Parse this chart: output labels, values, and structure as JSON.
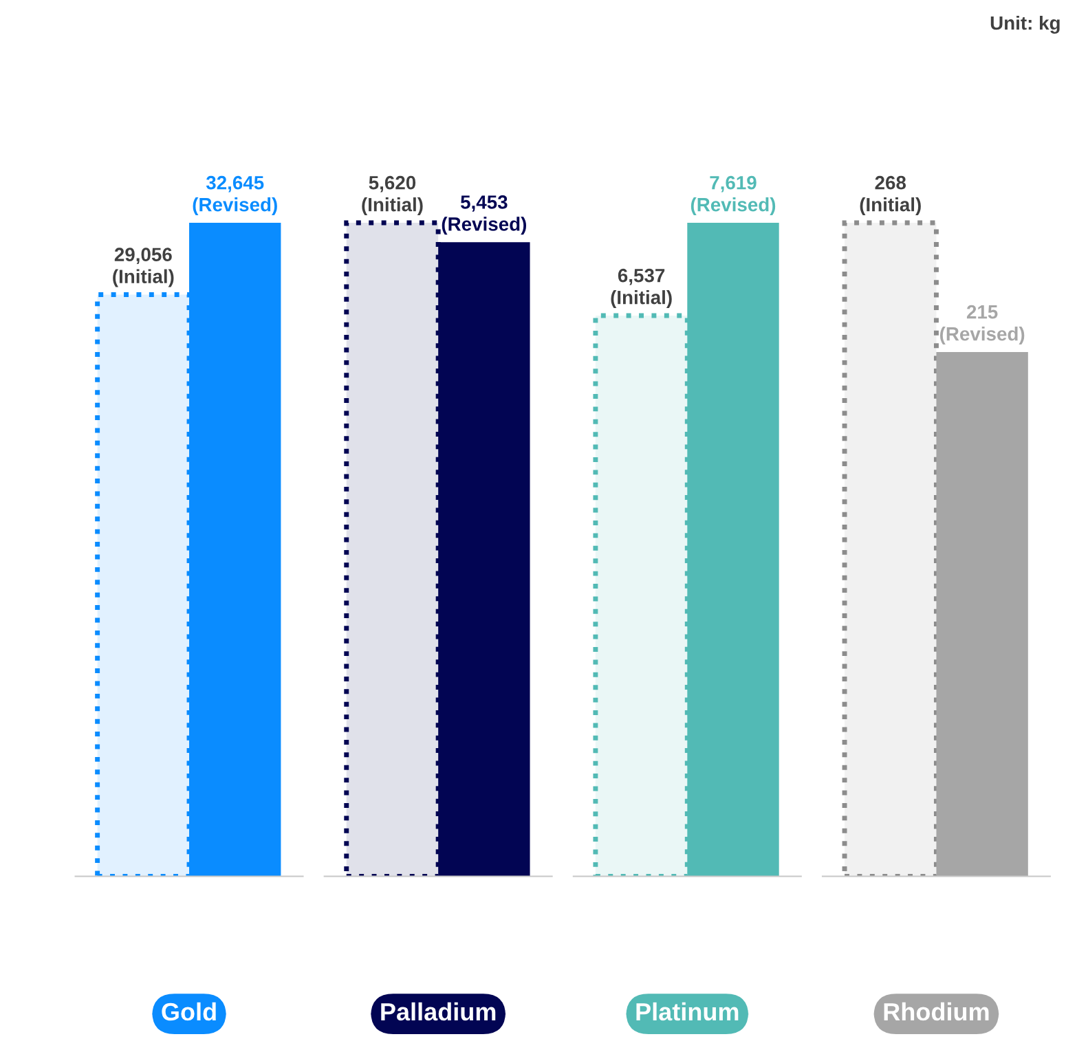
{
  "chart_data": [
    {
      "type": "bar",
      "xlabel": "Gold",
      "categories": [
        null
      ],
      "tick_labels": false,
      "grid": false,
      "legend": false,
      "color": "#0a8cff",
      "series": [
        {
          "color": "#0a8cff",
          "values": [
            29056
          ],
          "line_style": "dotted",
          "value_labels": [
            "29,056\n(Initial)"
          ]
        },
        {
          "color": "#0a8cff",
          "values": [
            32645
          ],
          "value_labels": [
            "32,645\n(Revised)"
          ]
        }
      ]
    },
    {
      "type": "bar",
      "xlabel": "Palladium",
      "categories": [
        null
      ],
      "tick_labels": false,
      "grid": false,
      "legend": false,
      "color": "#020553",
      "series": [
        {
          "color": "#020553",
          "values": [
            5620
          ],
          "line_style": "dotted",
          "value_labels": [
            "5,620\n(Initial)"
          ]
        },
        {
          "color": "#020553",
          "values": [
            5453
          ],
          "value_labels": [
            "5,453\n(Revised)"
          ]
        }
      ]
    },
    {
      "type": "bar",
      "xlabel": "Platinum",
      "categories": [
        null
      ],
      "tick_labels": false,
      "grid": false,
      "legend": false,
      "color": "#52bab5",
      "series": [
        {
          "color": "#52bab5",
          "values": [
            6537
          ],
          "line_style": "dotted",
          "value_labels": [
            "6,537\n(Initial)"
          ]
        },
        {
          "color": "#52bab5",
          "values": [
            7619
          ],
          "value_labels": [
            "7,619\n(Revised)"
          ]
        }
      ]
    },
    {
      "type": "bar",
      "xlabel": "Rhodium",
      "categories": [
        null
      ],
      "tick_labels": false,
      "grid": false,
      "legend": false,
      "color": "#a6a6a6",
      "annotations": [
        "Unit: kg"
      ],
      "series": [
        {
          "color": "#8c8c8c",
          "values": [
            268
          ],
          "line_style": "dotted",
          "value_labels": [
            "268\n(Initial)"
          ]
        },
        {
          "color": "#a6a6a6",
          "values": [
            215
          ],
          "value_labels": [
            "215\n(Revised)"
          ]
        }
      ]
    }
  ]
}
